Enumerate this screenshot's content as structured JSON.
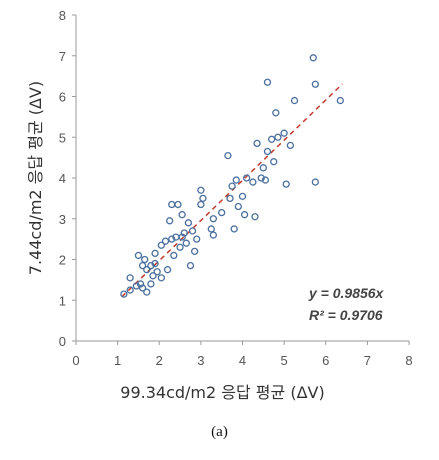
{
  "chart_data": {
    "type": "scatter",
    "title": "",
    "xlabel": "99.34cd/m2 응답 평균 (ΔV)",
    "ylabel": "7.44cd/m2 응답 평균 (ΔV)",
    "xlim": [
      0,
      8
    ],
    "ylim": [
      0,
      8
    ],
    "xticks": [
      0,
      1,
      2,
      3,
      4,
      5,
      6,
      7,
      8
    ],
    "yticks": [
      0,
      1,
      2,
      3,
      4,
      5,
      6,
      7,
      8
    ],
    "grid": false,
    "marker_color": "#4a6f9e",
    "trend_color": "#c0392b",
    "annotations": [
      "y = 0.9856x",
      "R² = 0.9706"
    ],
    "trendline": {
      "type": "linear",
      "slope": 0.9856,
      "intercept": 0,
      "x_range": [
        1.1,
        6.4
      ]
    },
    "points": [
      {
        "x": 1.15,
        "y": 1.15
      },
      {
        "x": 1.3,
        "y": 1.55
      },
      {
        "x": 1.3,
        "y": 1.25
      },
      {
        "x": 1.45,
        "y": 1.35
      },
      {
        "x": 1.5,
        "y": 2.1
      },
      {
        "x": 1.55,
        "y": 1.4
      },
      {
        "x": 1.6,
        "y": 1.85
      },
      {
        "x": 1.6,
        "y": 1.3
      },
      {
        "x": 1.65,
        "y": 2.0
      },
      {
        "x": 1.7,
        "y": 1.2
      },
      {
        "x": 1.7,
        "y": 1.75
      },
      {
        "x": 1.8,
        "y": 1.85
      },
      {
        "x": 1.8,
        "y": 1.4
      },
      {
        "x": 1.85,
        "y": 1.6
      },
      {
        "x": 1.9,
        "y": 1.9
      },
      {
        "x": 1.9,
        "y": 2.15
      },
      {
        "x": 1.95,
        "y": 1.7
      },
      {
        "x": 2.05,
        "y": 2.35
      },
      {
        "x": 2.05,
        "y": 1.55
      },
      {
        "x": 2.15,
        "y": 2.45
      },
      {
        "x": 2.2,
        "y": 1.75
      },
      {
        "x": 2.25,
        "y": 2.95
      },
      {
        "x": 2.3,
        "y": 2.5
      },
      {
        "x": 2.3,
        "y": 3.35
      },
      {
        "x": 2.35,
        "y": 2.1
      },
      {
        "x": 2.4,
        "y": 2.55
      },
      {
        "x": 2.45,
        "y": 3.35
      },
      {
        "x": 2.5,
        "y": 2.3
      },
      {
        "x": 2.55,
        "y": 3.1
      },
      {
        "x": 2.55,
        "y": 2.55
      },
      {
        "x": 2.6,
        "y": 2.65
      },
      {
        "x": 2.65,
        "y": 2.4
      },
      {
        "x": 2.7,
        "y": 2.9
      },
      {
        "x": 2.75,
        "y": 1.85
      },
      {
        "x": 2.8,
        "y": 2.7
      },
      {
        "x": 2.85,
        "y": 2.2
      },
      {
        "x": 2.9,
        "y": 2.5
      },
      {
        "x": 3.0,
        "y": 3.7
      },
      {
        "x": 3.0,
        "y": 3.35
      },
      {
        "x": 3.05,
        "y": 3.5
      },
      {
        "x": 3.25,
        "y": 2.75
      },
      {
        "x": 3.3,
        "y": 3.0
      },
      {
        "x": 3.3,
        "y": 2.6
      },
      {
        "x": 3.5,
        "y": 3.15
      },
      {
        "x": 3.65,
        "y": 4.55
      },
      {
        "x": 3.7,
        "y": 3.5
      },
      {
        "x": 3.75,
        "y": 3.8
      },
      {
        "x": 3.8,
        "y": 2.75
      },
      {
        "x": 3.85,
        "y": 3.95
      },
      {
        "x": 3.9,
        "y": 3.3
      },
      {
        "x": 4.0,
        "y": 3.55
      },
      {
        "x": 4.05,
        "y": 3.1
      },
      {
        "x": 4.1,
        "y": 4.0
      },
      {
        "x": 4.25,
        "y": 3.9
      },
      {
        "x": 4.3,
        "y": 3.05
      },
      {
        "x": 4.35,
        "y": 4.85
      },
      {
        "x": 4.45,
        "y": 4.0
      },
      {
        "x": 4.5,
        "y": 4.25
      },
      {
        "x": 4.55,
        "y": 3.95
      },
      {
        "x": 4.6,
        "y": 6.35
      },
      {
        "x": 4.6,
        "y": 4.65
      },
      {
        "x": 4.7,
        "y": 4.95
      },
      {
        "x": 4.75,
        "y": 4.4
      },
      {
        "x": 4.8,
        "y": 5.6
      },
      {
        "x": 4.85,
        "y": 5.0
      },
      {
        "x": 5.0,
        "y": 5.1
      },
      {
        "x": 5.05,
        "y": 3.85
      },
      {
        "x": 5.15,
        "y": 4.8
      },
      {
        "x": 5.25,
        "y": 5.9
      },
      {
        "x": 5.7,
        "y": 6.95
      },
      {
        "x": 5.75,
        "y": 6.3
      },
      {
        "x": 5.75,
        "y": 3.9
      },
      {
        "x": 6.35,
        "y": 5.9
      }
    ]
  },
  "caption": "(a)"
}
